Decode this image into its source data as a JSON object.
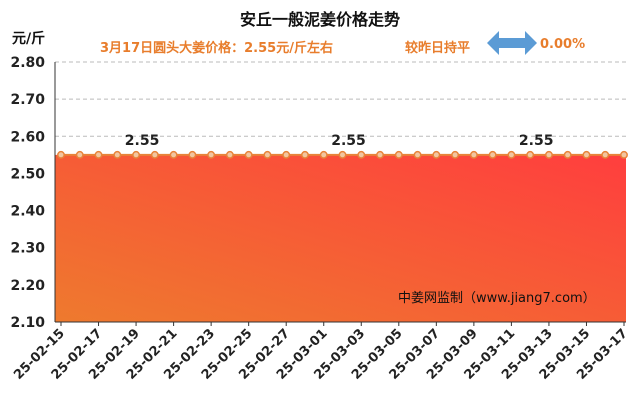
{
  "header": {
    "title": "安丘一般泥姜价格走势",
    "unit": "元/斤",
    "subtitle": "3月17日圆头大姜价格：2.55元/斤左右",
    "compare_text": "较昨日持平",
    "change_percent": "0.00%",
    "arrow_icon": "double-arrow-icon",
    "arrow_color": "#5b9bd5"
  },
  "watermark": "中姜网监制（www.jiang7.com）",
  "colors": {
    "line": "#e8833a",
    "marker_fill": "#f2c6a0",
    "area_top": "#ff3e3e",
    "area_bottom_left": "#ee7a2e",
    "text_accent": "#e87d2c"
  },
  "chart_data": {
    "type": "area",
    "title": "安丘一般泥姜价格走势",
    "ylabel": "元/斤",
    "ylim": [
      2.1,
      2.8
    ],
    "yticks": [
      "2.10",
      "2.20",
      "2.30",
      "2.40",
      "2.50",
      "2.60",
      "2.70",
      "2.80"
    ],
    "grid": true,
    "x": [
      "25-02-15",
      "25-02-16",
      "25-02-17",
      "25-02-18",
      "25-02-19",
      "25-02-20",
      "25-02-21",
      "25-02-22",
      "25-02-23",
      "25-02-24",
      "25-02-25",
      "25-02-26",
      "25-02-27",
      "25-02-28",
      "25-03-01",
      "25-03-02",
      "25-03-03",
      "25-03-04",
      "25-03-05",
      "25-03-06",
      "25-03-07",
      "25-03-08",
      "25-03-09",
      "25-03-10",
      "25-03-11",
      "25-03-12",
      "25-03-13",
      "25-03-14",
      "25-03-15",
      "25-03-16",
      "25-03-17"
    ],
    "xtick_labels": [
      "25-02-15",
      "25-02-17",
      "25-02-19",
      "25-02-21",
      "25-02-23",
      "25-02-25",
      "25-02-27",
      "25-03-01",
      "25-03-03",
      "25-03-05",
      "25-03-07",
      "25-03-09",
      "25-03-11",
      "25-03-13",
      "25-03-15",
      "25-03-17"
    ],
    "values": [
      2.55,
      2.55,
      2.55,
      2.55,
      2.55,
      2.55,
      2.55,
      2.55,
      2.55,
      2.55,
      2.55,
      2.55,
      2.55,
      2.55,
      2.55,
      2.55,
      2.55,
      2.55,
      2.55,
      2.55,
      2.55,
      2.55,
      2.55,
      2.55,
      2.55,
      2.55,
      2.55,
      2.55,
      2.55,
      2.55,
      2.55
    ],
    "data_labels": [
      {
        "x": "25-02-19",
        "label": "2.55"
      },
      {
        "x": "25-03-02",
        "label": "2.55"
      },
      {
        "x": "25-03-12",
        "label": "2.55"
      }
    ]
  }
}
